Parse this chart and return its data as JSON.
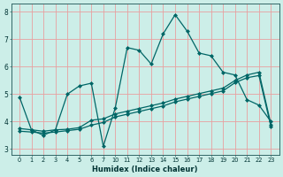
{
  "xlabel": "Humidex (Indice chaleur)",
  "background_color": "#cceee8",
  "grid_color": "#e8a0a0",
  "line_color": "#006666",
  "ylim": [
    2.8,
    8.3
  ],
  "yticks": [
    3,
    4,
    5,
    6,
    7,
    8
  ],
  "xtick_labels": [
    "0",
    "1",
    "2",
    "3",
    "4",
    "5",
    "6",
    "7",
    "10",
    "11",
    "12",
    "13",
    "14",
    "15",
    "16",
    "17",
    "18",
    "19",
    "20",
    "21",
    "22",
    "23"
  ],
  "line1_y": [
    4.9,
    3.7,
    3.5,
    3.7,
    5.0,
    5.3,
    5.4,
    3.1,
    4.5,
    6.7,
    6.6,
    6.1,
    7.2,
    7.9,
    7.3,
    6.5,
    6.4,
    5.8,
    5.7,
    4.8,
    4.6,
    4.0
  ],
  "line2_y": [
    3.75,
    3.7,
    3.65,
    3.7,
    3.72,
    3.78,
    4.05,
    4.1,
    4.28,
    4.38,
    4.48,
    4.58,
    4.68,
    4.82,
    4.92,
    5.02,
    5.12,
    5.22,
    5.5,
    5.7,
    5.8,
    3.9
  ],
  "line3_y": [
    3.65,
    3.62,
    3.58,
    3.62,
    3.67,
    3.72,
    3.87,
    3.97,
    4.17,
    4.27,
    4.37,
    4.47,
    4.57,
    4.72,
    4.82,
    4.92,
    5.02,
    5.12,
    5.42,
    5.6,
    5.68,
    3.82
  ]
}
